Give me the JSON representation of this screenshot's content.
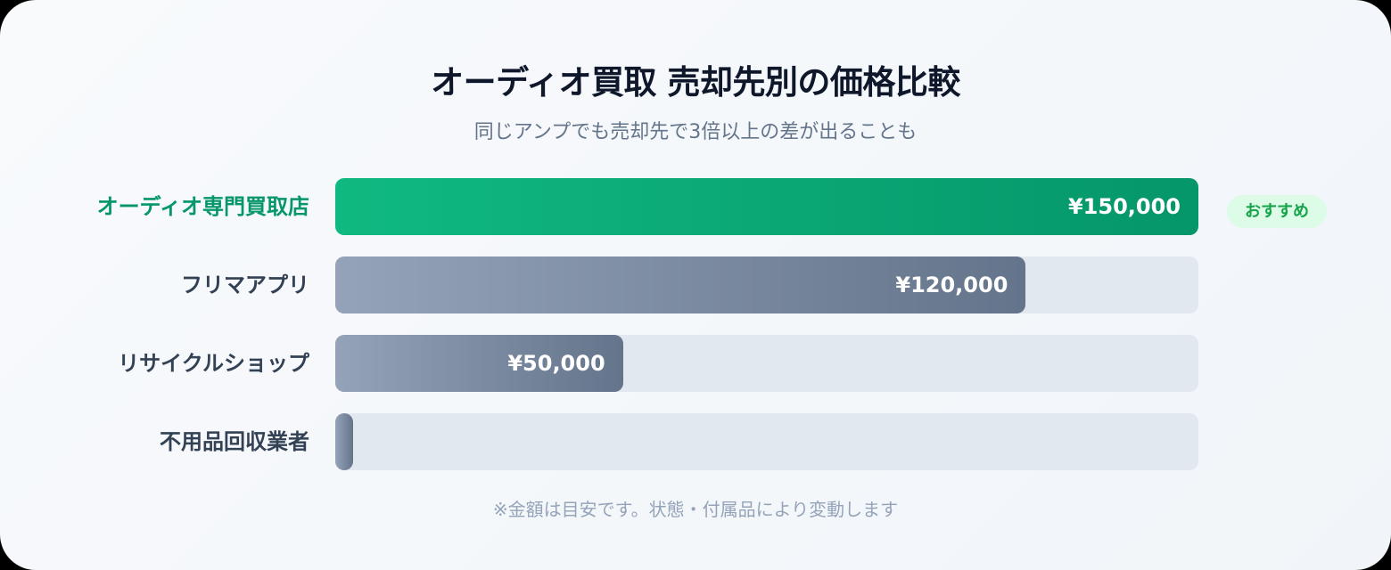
{
  "title": "オーディオ買取 売却先別の価格比較",
  "subtitle": "同じアンプでも売却先で3倍以上の差が出ることも",
  "footnote": "※金額は目安です。状態・付属品により変動します",
  "colors": {
    "recommended": "#059669",
    "other": "#64748b",
    "track": "#e2e8f0",
    "badge_bg": "#dcfce7",
    "badge_text": "#16a34a"
  },
  "chart_data": {
    "type": "bar",
    "orientation": "horizontal",
    "title": "オーディオ買取 売却先別の価格比較",
    "subtitle": "同じアンプでも売却先で3倍以上の差が出ることも",
    "categories": [
      "オーディオ専門買取店",
      "フリマアプリ",
      "リサイクルショップ",
      "不用品回収業者"
    ],
    "values": [
      150000,
      120000,
      50000,
      0
    ],
    "value_labels": [
      "¥150,000",
      "¥120,000",
      "¥50,000",
      ""
    ],
    "xlim": [
      0,
      150000
    ],
    "grid": false,
    "highlight": {
      "category": "オーディオ専門買取店",
      "badge": "おすすめ"
    }
  }
}
